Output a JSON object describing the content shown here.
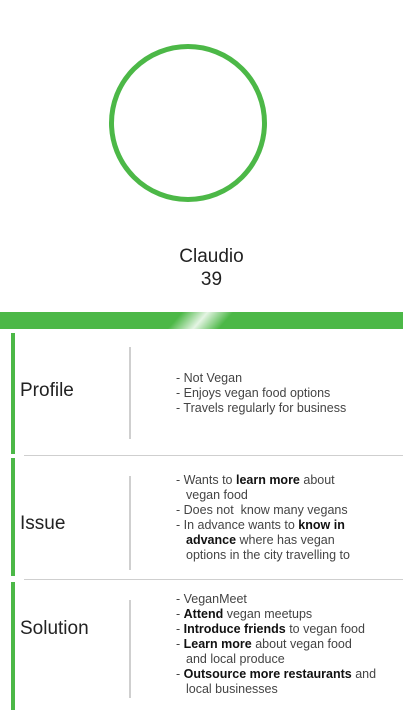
{
  "persona": {
    "name": "Claudio",
    "age": "39",
    "accent_color": "#4cb847"
  },
  "sections": {
    "profile": {
      "label": "Profile",
      "lines": [
        "- Not Vegan",
        "- Enjoys vegan food options",
        "- Travels regularly for business"
      ]
    },
    "issue": {
      "label": "Issue",
      "lines": {
        "l1_a": "- Wants to ",
        "l1_b": "learn more",
        "l1_c": " about",
        "l2": "vegan food",
        "l3": "- Does not  know many vegans",
        "l4_a": "- In advance wants to ",
        "l4_b": "know in",
        "l5_a": "advance",
        "l5_b": " where has vegan",
        "l6": "options in the city travelling to"
      }
    },
    "solution": {
      "label": "Solution",
      "lines": {
        "l1": "- VeganMeet",
        "l2_a": "- ",
        "l2_b": "Attend",
        "l2_c": " vegan meetups",
        "l3_a": "- ",
        "l3_b": "Introduce friends",
        "l3_c": " to vegan food",
        "l4_a": "- ",
        "l4_b": "Learn more",
        "l4_c": " about vegan food",
        "l5": "and local produce",
        "l6_a": "- ",
        "l6_b": "Outsource more restaurants",
        "l6_c": " and",
        "l7": "local businesses"
      }
    }
  }
}
